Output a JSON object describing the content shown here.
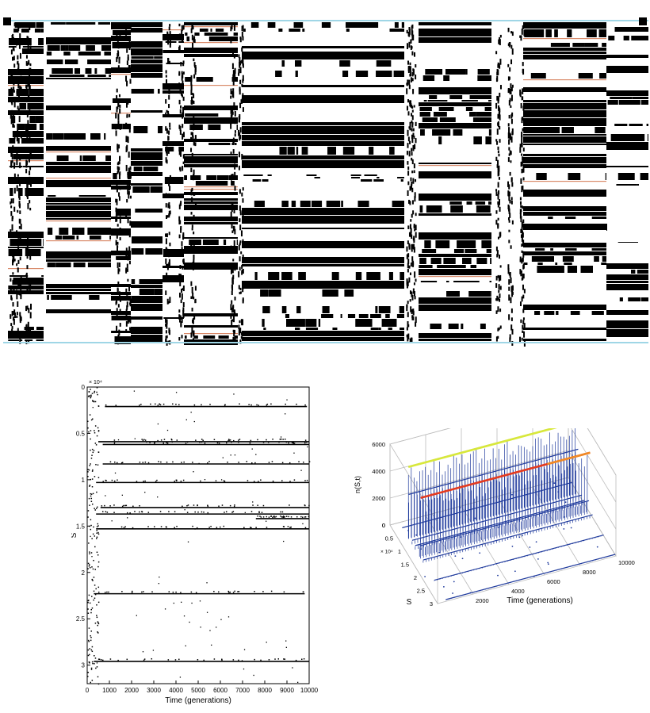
{
  "colors": {
    "background": "#ffffff",
    "ink": "#000000",
    "raster_highlight": "#d98a6a",
    "raster_grid": "#9fd6e6",
    "surface_line": "#1f3a9c",
    "surface_top_yellow": "#d8e83a",
    "surface_top_red": "#e43a1f",
    "surface_top_orange": "#f08a24",
    "surface_axis": "#bcbcbc"
  },
  "chart_data": [
    {
      "type": "heatmap",
      "title": "",
      "xlabel": "",
      "ylabel": "",
      "grid": false,
      "description_values": {
        "column_blocks": 9,
        "value_levels": [
          "0",
          "1"
        ]
      }
    },
    {
      "type": "scatter",
      "title": "",
      "xlabel": "Time (generations)",
      "ylabel": "S",
      "exponent_label": "× 10⁴",
      "xlim": [
        0,
        10000
      ],
      "ylim": [
        0,
        3.2
      ],
      "y_reversed": true,
      "x_ticks": [
        "0",
        "1000",
        "2000",
        "3000",
        "4000",
        "5000",
        "6000",
        "7000",
        "8000",
        "9000",
        "10000"
      ],
      "y_ticks": [
        "0",
        "0.5",
        "1",
        "1.5",
        "2",
        "2.5",
        "3"
      ],
      "x_tick_values": [
        0,
        1000,
        2000,
        3000,
        4000,
        5000,
        6000,
        7000,
        8000,
        9000,
        10000
      ],
      "y_tick_values": [
        0,
        0.5,
        1,
        1.5,
        2,
        2.5,
        3
      ],
      "grid": false,
      "series": [
        {
          "values": [
            {
              "S": 0.21,
              "x_start": 800,
              "x_end": 9900
            },
            {
              "S": 0.59,
              "x_start": 500,
              "x_end": 10000
            },
            {
              "S": 0.62,
              "x_start": 700,
              "x_end": 10000
            },
            {
              "S": 0.83,
              "x_start": 700,
              "x_end": 10000
            },
            {
              "S": 1.03,
              "x_start": 400,
              "x_end": 10000
            },
            {
              "S": 1.3,
              "x_start": 600,
              "x_end": 10000
            },
            {
              "S": 1.37,
              "x_start": 400,
              "x_end": 10000
            },
            {
              "S": 1.42,
              "x_start": 7600,
              "x_end": 10000
            },
            {
              "S": 1.53,
              "x_start": 400,
              "x_end": 10000
            },
            {
              "S": 2.23,
              "x_start": 300,
              "x_end": 9800
            },
            {
              "S": 2.96,
              "x_start": 300,
              "x_end": 10000
            }
          ]
        }
      ]
    },
    {
      "type": "line",
      "title": "",
      "xlabel": "Time (generations)",
      "ylabel": "S",
      "zlabel": "n(S,t)",
      "exponent_label": "× 10⁴",
      "xlim": [
        0,
        10000
      ],
      "ylim": [
        0,
        3
      ],
      "zlim": [
        0,
        6000
      ],
      "x_ticks": [
        "2000",
        "4000",
        "6000",
        "8000",
        "10000"
      ],
      "y_ticks": [
        "0",
        "0.5",
        "1",
        "1.5",
        "2",
        "2.5",
        "3"
      ],
      "z_ticks": [
        "0",
        "2000",
        "4000",
        "6000"
      ],
      "x_tick_values": [
        2000,
        4000,
        6000,
        8000,
        10000
      ],
      "y_tick_values": [
        0,
        0.5,
        1,
        1.5,
        2,
        2.5,
        3
      ],
      "z_tick_values": [
        0,
        2000,
        4000,
        6000
      ],
      "grid": true,
      "series": [
        {
          "S": 0.21,
          "count": 30
        },
        {
          "S": 0.6,
          "count": 5300
        },
        {
          "S": 0.62,
          "count": 3300
        },
        {
          "S": 0.83,
          "count": 300
        },
        {
          "S": 1.03,
          "count": 300
        },
        {
          "S": 1.3,
          "count": 800
        },
        {
          "S": 1.37,
          "count": 4500
        },
        {
          "S": 1.53,
          "count": 200
        },
        {
          "S": 2.23,
          "count": 60
        },
        {
          "S": 2.96,
          "count": 40
        }
      ]
    }
  ]
}
